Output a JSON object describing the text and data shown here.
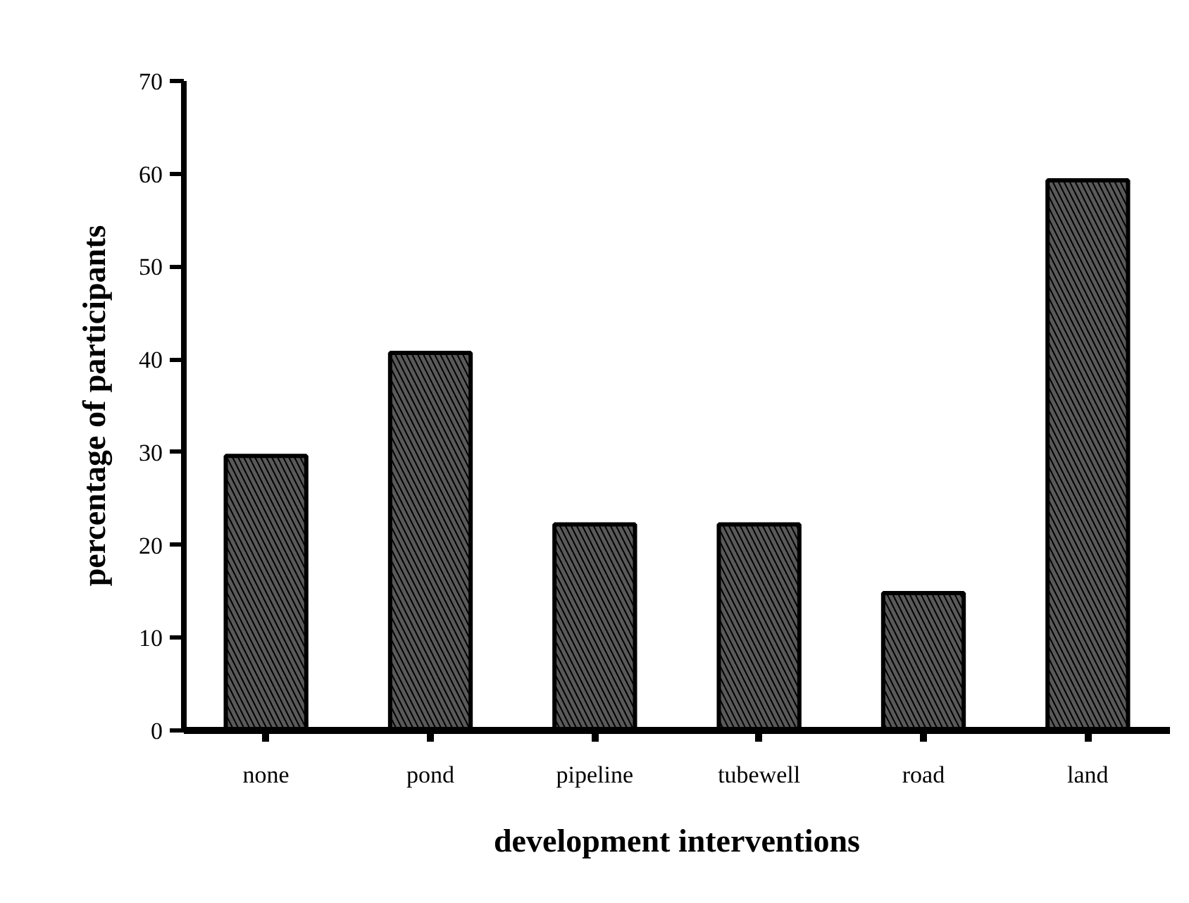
{
  "chart_data": {
    "type": "bar",
    "xlabel": "development interventions",
    "ylabel": "percentage of participants",
    "categories": [
      "none",
      "pond",
      "pipeline",
      "tubewell",
      "road",
      "land"
    ],
    "values": [
      29.6,
      40.7,
      22.2,
      22.2,
      14.8,
      59.3
    ],
    "color": "#595959",
    "ylim": [
      0,
      70
    ],
    "yticks": [
      0,
      10,
      20,
      30,
      40,
      50,
      60,
      70
    ],
    "grid": false
  }
}
